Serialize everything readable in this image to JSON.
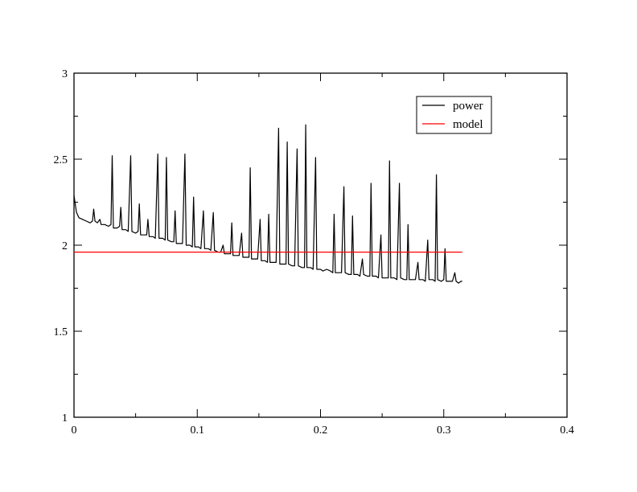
{
  "chart_data": {
    "type": "line",
    "title": "",
    "xlabel": "",
    "ylabel": "",
    "xlim": [
      0,
      0.4
    ],
    "ylim": [
      1,
      3
    ],
    "x_ticks": [
      0,
      0.1,
      0.2,
      0.3,
      0.4
    ],
    "x_tick_labels": [
      "0",
      "0.1",
      "0.2",
      "0.3",
      "0.4"
    ],
    "y_ticks": [
      1,
      1.5,
      2,
      2.5,
      3
    ],
    "y_tick_labels": [
      "1",
      "1.5",
      "2",
      "2.5",
      "3"
    ],
    "grid": false,
    "legend_position": "top-right",
    "series": [
      {
        "name": "power",
        "color": "#000000",
        "points": [
          [
            0.0,
            2.29
          ],
          [
            0.001,
            2.24
          ],
          [
            0.002,
            2.19
          ],
          [
            0.004,
            2.16
          ],
          [
            0.007,
            2.15
          ],
          [
            0.01,
            2.14
          ],
          [
            0.013,
            2.13
          ],
          [
            0.015,
            2.14
          ],
          [
            0.016,
            2.21
          ],
          [
            0.017,
            2.14
          ],
          [
            0.019,
            2.13
          ],
          [
            0.021,
            2.15
          ],
          [
            0.022,
            2.12
          ],
          [
            0.025,
            2.12
          ],
          [
            0.028,
            2.11
          ],
          [
            0.03,
            2.12
          ],
          [
            0.031,
            2.52
          ],
          [
            0.032,
            2.1
          ],
          [
            0.035,
            2.1
          ],
          [
            0.037,
            2.11
          ],
          [
            0.038,
            2.22
          ],
          [
            0.039,
            2.09
          ],
          [
            0.042,
            2.09
          ],
          [
            0.044,
            2.08
          ],
          [
            0.046,
            2.52
          ],
          [
            0.047,
            2.08
          ],
          [
            0.05,
            2.07
          ],
          [
            0.052,
            2.08
          ],
          [
            0.053,
            2.24
          ],
          [
            0.054,
            2.06
          ],
          [
            0.057,
            2.06
          ],
          [
            0.059,
            2.06
          ],
          [
            0.06,
            2.15
          ],
          [
            0.061,
            2.05
          ],
          [
            0.064,
            2.05
          ],
          [
            0.066,
            2.04
          ],
          [
            0.068,
            2.53
          ],
          [
            0.069,
            2.04
          ],
          [
            0.072,
            2.04
          ],
          [
            0.074,
            2.03
          ],
          [
            0.075,
            2.51
          ],
          [
            0.076,
            2.03
          ],
          [
            0.079,
            2.02
          ],
          [
            0.081,
            2.02
          ],
          [
            0.082,
            2.2
          ],
          [
            0.083,
            2.01
          ],
          [
            0.086,
            2.01
          ],
          [
            0.088,
            2.01
          ],
          [
            0.09,
            2.53
          ],
          [
            0.091,
            2.0
          ],
          [
            0.094,
            2.0
          ],
          [
            0.096,
            1.99
          ],
          [
            0.097,
            2.28
          ],
          [
            0.098,
            1.99
          ],
          [
            0.101,
            1.99
          ],
          [
            0.103,
            1.98
          ],
          [
            0.105,
            2.2
          ],
          [
            0.106,
            1.98
          ],
          [
            0.109,
            1.98
          ],
          [
            0.111,
            1.97
          ],
          [
            0.113,
            2.19
          ],
          [
            0.114,
            1.97
          ],
          [
            0.117,
            1.96
          ],
          [
            0.119,
            1.96
          ],
          [
            0.121,
            2.0
          ],
          [
            0.122,
            1.95
          ],
          [
            0.125,
            1.95
          ],
          [
            0.127,
            1.95
          ],
          [
            0.128,
            2.13
          ],
          [
            0.129,
            1.94
          ],
          [
            0.132,
            1.94
          ],
          [
            0.134,
            1.94
          ],
          [
            0.136,
            2.07
          ],
          [
            0.137,
            1.93
          ],
          [
            0.14,
            1.93
          ],
          [
            0.142,
            1.93
          ],
          [
            0.143,
            2.45
          ],
          [
            0.144,
            1.92
          ],
          [
            0.147,
            1.92
          ],
          [
            0.149,
            1.92
          ],
          [
            0.151,
            2.15
          ],
          [
            0.152,
            1.91
          ],
          [
            0.155,
            1.91
          ],
          [
            0.157,
            1.9
          ],
          [
            0.158,
            2.18
          ],
          [
            0.159,
            1.9
          ],
          [
            0.162,
            1.9
          ],
          [
            0.164,
            1.9
          ],
          [
            0.166,
            2.68
          ],
          [
            0.167,
            1.89
          ],
          [
            0.17,
            1.89
          ],
          [
            0.172,
            1.89
          ],
          [
            0.173,
            2.6
          ],
          [
            0.174,
            1.89
          ],
          [
            0.177,
            1.88
          ],
          [
            0.179,
            1.88
          ],
          [
            0.181,
            2.56
          ],
          [
            0.182,
            1.88
          ],
          [
            0.185,
            1.87
          ],
          [
            0.187,
            1.87
          ],
          [
            0.188,
            2.7
          ],
          [
            0.189,
            1.87
          ],
          [
            0.192,
            1.87
          ],
          [
            0.194,
            1.86
          ],
          [
            0.196,
            2.51
          ],
          [
            0.197,
            1.86
          ],
          [
            0.2,
            1.86
          ],
          [
            0.202,
            1.85
          ],
          [
            0.205,
            1.86
          ],
          [
            0.208,
            1.85
          ],
          [
            0.21,
            1.84
          ],
          [
            0.211,
            2.18
          ],
          [
            0.212,
            1.84
          ],
          [
            0.215,
            1.84
          ],
          [
            0.217,
            1.84
          ],
          [
            0.219,
            2.34
          ],
          [
            0.22,
            1.84
          ],
          [
            0.223,
            1.83
          ],
          [
            0.225,
            1.83
          ],
          [
            0.226,
            2.17
          ],
          [
            0.227,
            1.83
          ],
          [
            0.23,
            1.83
          ],
          [
            0.232,
            1.82
          ],
          [
            0.234,
            1.92
          ],
          [
            0.235,
            1.83
          ],
          [
            0.238,
            1.82
          ],
          [
            0.24,
            1.82
          ],
          [
            0.241,
            2.36
          ],
          [
            0.242,
            1.82
          ],
          [
            0.245,
            1.82
          ],
          [
            0.247,
            1.81
          ],
          [
            0.249,
            2.06
          ],
          [
            0.25,
            1.81
          ],
          [
            0.253,
            1.81
          ],
          [
            0.255,
            1.81
          ],
          [
            0.256,
            2.49
          ],
          [
            0.257,
            1.81
          ],
          [
            0.26,
            1.81
          ],
          [
            0.262,
            1.8
          ],
          [
            0.264,
            2.36
          ],
          [
            0.265,
            1.81
          ],
          [
            0.268,
            1.8
          ],
          [
            0.27,
            1.8
          ],
          [
            0.271,
            2.12
          ],
          [
            0.272,
            1.8
          ],
          [
            0.275,
            1.8
          ],
          [
            0.277,
            1.8
          ],
          [
            0.279,
            1.9
          ],
          [
            0.28,
            1.8
          ],
          [
            0.283,
            1.8
          ],
          [
            0.285,
            1.79
          ],
          [
            0.287,
            2.03
          ],
          [
            0.288,
            1.8
          ],
          [
            0.291,
            1.8
          ],
          [
            0.293,
            1.79
          ],
          [
            0.294,
            2.41
          ],
          [
            0.295,
            1.8
          ],
          [
            0.298,
            1.79
          ],
          [
            0.3,
            1.8
          ],
          [
            0.301,
            1.98
          ],
          [
            0.302,
            1.79
          ],
          [
            0.305,
            1.79
          ],
          [
            0.307,
            1.79
          ],
          [
            0.309,
            1.84
          ],
          [
            0.31,
            1.79
          ],
          [
            0.312,
            1.78
          ],
          [
            0.314,
            1.79
          ],
          [
            0.315,
            1.79
          ]
        ]
      },
      {
        "name": "model",
        "color": "#ff0000",
        "points": [
          [
            0.0,
            1.96
          ],
          [
            0.315,
            1.96
          ]
        ]
      }
    ]
  }
}
